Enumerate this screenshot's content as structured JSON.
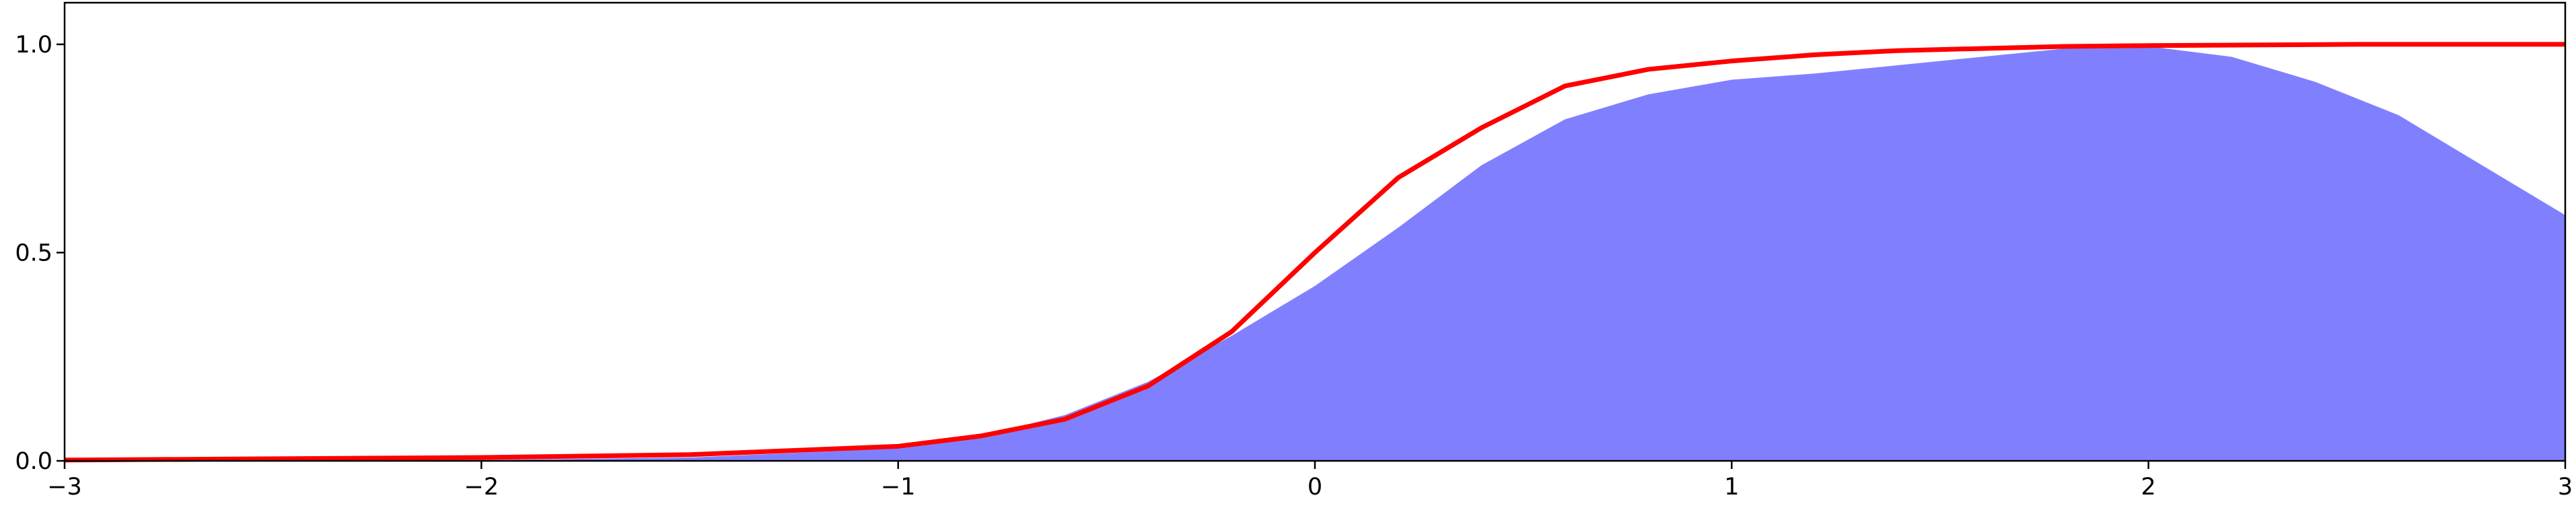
{
  "chart_data": {
    "type": "area",
    "title": "",
    "xlabel": "",
    "ylabel": "",
    "xlim": [
      -3,
      3
    ],
    "ylim": [
      0,
      1.1
    ],
    "grid": false,
    "legend": "none",
    "x_ticks": [
      -3,
      -2,
      -1,
      0,
      1,
      2,
      3
    ],
    "x_tick_labels": [
      "−3",
      "−2",
      "−1",
      "0",
      "1",
      "2",
      "3"
    ],
    "y_ticks": [
      0.0,
      0.5,
      1.0
    ],
    "y_tick_labels": [
      "0.0",
      "0.5",
      "1.0"
    ],
    "series": [
      {
        "kind": "area",
        "color": "#8080ff",
        "x": [
          -3,
          -2.5,
          -2,
          -1.5,
          -1,
          -0.8,
          -0.6,
          -0.4,
          -0.2,
          0,
          0.2,
          0.4,
          0.6,
          0.8,
          1,
          1.2,
          1.4,
          1.6,
          1.8,
          2,
          2.2,
          2.4,
          2.6,
          2.8,
          3
        ],
        "y": [
          0.0,
          0.0,
          0.002,
          0.008,
          0.03,
          0.06,
          0.11,
          0.19,
          0.3,
          0.42,
          0.56,
          0.71,
          0.82,
          0.88,
          0.915,
          0.93,
          0.95,
          0.97,
          0.99,
          0.995,
          0.97,
          0.91,
          0.83,
          0.71,
          0.59
        ]
      },
      {
        "kind": "line",
        "color": "#ff0000",
        "x": [
          -3,
          -2.5,
          -2,
          -1.5,
          -1,
          -0.8,
          -0.6,
          -0.4,
          -0.2,
          0,
          0.2,
          0.4,
          0.6,
          0.8,
          1,
          1.2,
          1.4,
          1.6,
          1.8,
          2,
          2.5,
          3
        ],
        "y": [
          0.002,
          0.005,
          0.008,
          0.015,
          0.035,
          0.06,
          0.1,
          0.18,
          0.31,
          0.5,
          0.68,
          0.8,
          0.9,
          0.94,
          0.96,
          0.975,
          0.985,
          0.99,
          0.995,
          0.997,
          1.0,
          1.0
        ]
      }
    ]
  }
}
